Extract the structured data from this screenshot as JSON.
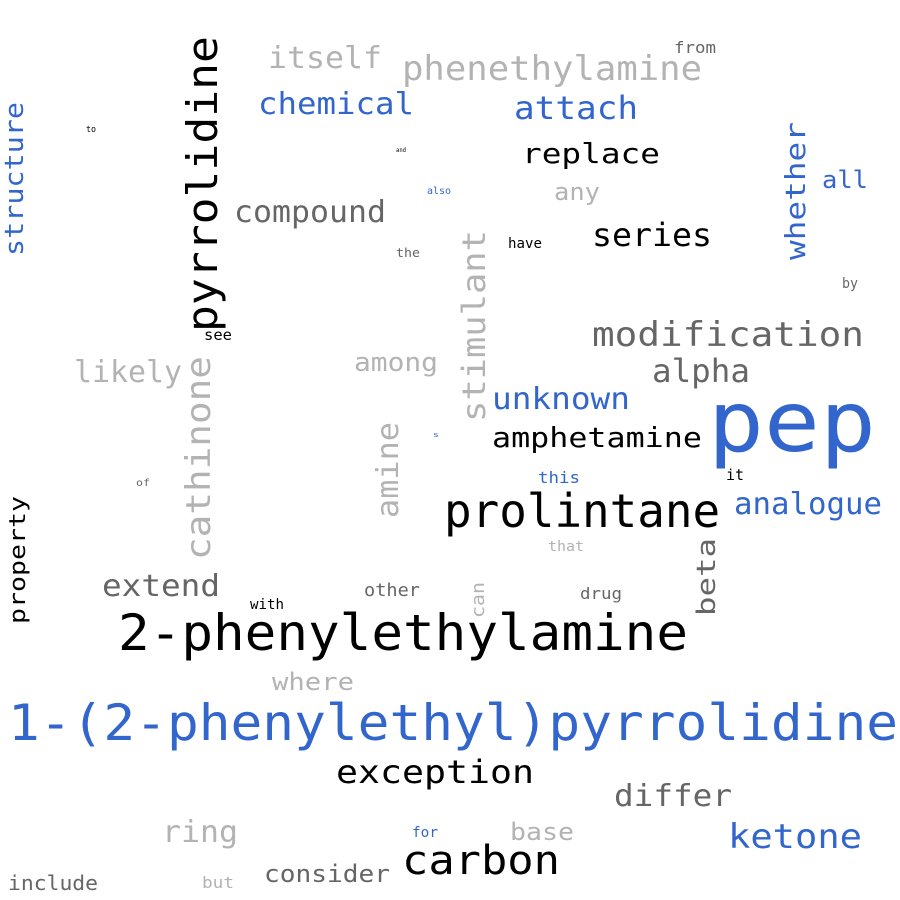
{
  "colors": {
    "blue": "#3366cc",
    "black": "#000000",
    "dark_gray": "#666666",
    "light_gray": "#b3b3b3"
  },
  "words": [
    {
      "text": "1-(2-phenylethyl)pyrrolidine",
      "color": "blue"
    },
    {
      "text": "2-phenylethylamine",
      "color": "black"
    },
    {
      "text": "pep",
      "color": "blue"
    },
    {
      "text": "pyrrolidine",
      "color": "black"
    },
    {
      "text": "prolintane",
      "color": "black"
    },
    {
      "text": "carbon",
      "color": "black"
    },
    {
      "text": "cathinone",
      "color": "light_gray"
    },
    {
      "text": "modification",
      "color": "dark_gray"
    },
    {
      "text": "phenethylamine",
      "color": "light_gray"
    },
    {
      "text": "exception",
      "color": "black"
    },
    {
      "text": "stimulant",
      "color": "light_gray"
    },
    {
      "text": "ketone",
      "color": "blue"
    },
    {
      "text": "attach",
      "color": "blue"
    },
    {
      "text": "chemical",
      "color": "blue"
    },
    {
      "text": "compound",
      "color": "dark_gray"
    },
    {
      "text": "replace",
      "color": "black"
    },
    {
      "text": "series",
      "color": "black"
    },
    {
      "text": "itself",
      "color": "light_gray"
    },
    {
      "text": "amphetamine",
      "color": "black"
    },
    {
      "text": "unknown",
      "color": "blue"
    },
    {
      "text": "analogue",
      "color": "blue"
    },
    {
      "text": "alpha",
      "color": "dark_gray"
    },
    {
      "text": "extend",
      "color": "dark_gray"
    },
    {
      "text": "whether",
      "color": "blue"
    },
    {
      "text": "differ",
      "color": "dark_gray"
    },
    {
      "text": "likely",
      "color": "light_gray"
    },
    {
      "text": "structure",
      "color": "blue"
    },
    {
      "text": "amine",
      "color": "light_gray"
    },
    {
      "text": "ring",
      "color": "light_gray"
    },
    {
      "text": "beta",
      "color": "dark_gray"
    },
    {
      "text": "among",
      "color": "light_gray"
    },
    {
      "text": "consider",
      "color": "dark_gray"
    },
    {
      "text": "base",
      "color": "light_gray"
    },
    {
      "text": "property",
      "color": "black"
    },
    {
      "text": "where",
      "color": "light_gray"
    },
    {
      "text": "include",
      "color": "dark_gray"
    },
    {
      "text": "any",
      "color": "light_gray"
    },
    {
      "text": "all",
      "color": "blue"
    },
    {
      "text": "other",
      "color": "dark_gray"
    },
    {
      "text": "drug",
      "color": "dark_gray"
    },
    {
      "text": "this",
      "color": "blue"
    },
    {
      "text": "from",
      "color": "dark_gray"
    },
    {
      "text": "can",
      "color": "light_gray"
    },
    {
      "text": "but",
      "color": "light_gray"
    },
    {
      "text": "see",
      "color": "black"
    },
    {
      "text": "with",
      "color": "black"
    },
    {
      "text": "have",
      "color": "black"
    },
    {
      "text": "for",
      "color": "blue"
    },
    {
      "text": "it",
      "color": "black"
    },
    {
      "text": "that",
      "color": "light_gray"
    },
    {
      "text": "by",
      "color": "dark_gray"
    },
    {
      "text": "the",
      "color": "dark_gray"
    },
    {
      "text": "of",
      "color": "dark_gray"
    },
    {
      "text": "also",
      "color": "blue"
    },
    {
      "text": "to",
      "color": "black"
    },
    {
      "text": "and",
      "color": "black"
    },
    {
      "text": "s",
      "color": "blue"
    }
  ]
}
